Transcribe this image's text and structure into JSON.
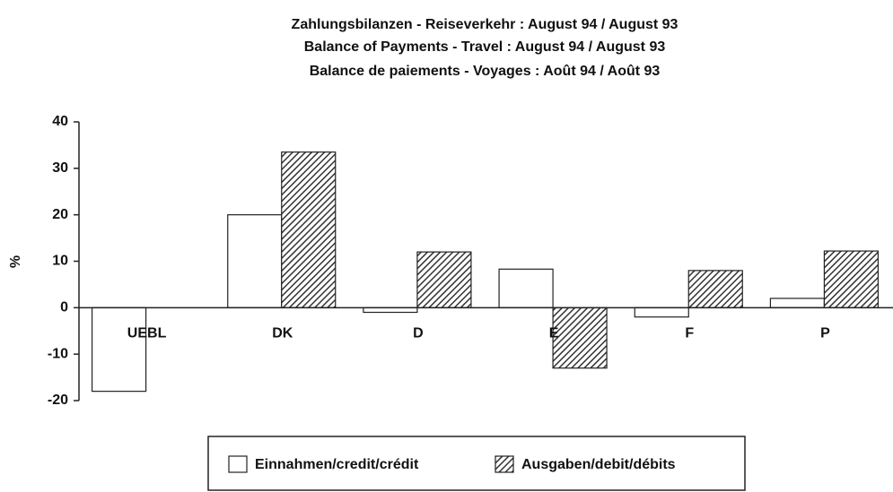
{
  "chart_data": {
    "type": "bar",
    "title": [
      "Zahlungsbilanzen - Reiseverkehr : August  94 / August 93",
      "Balance of Payments - Travel : August 94 / August 93",
      "Balance de paiements - Voyages : Août 94 / Août 93"
    ],
    "y_label": "%",
    "categories": [
      "UEBL",
      "DK",
      "D",
      "E",
      "F",
      "P"
    ],
    "series": [
      {
        "name": "Einnahmen/credit/crédit",
        "color": "#ffffff",
        "values": [
          -18,
          20,
          -1,
          8.3,
          -2,
          2
        ]
      },
      {
        "name": "Ausgaben/debit/débits",
        "color": "#333333",
        "values": [
          null,
          33.5,
          12,
          -13,
          8,
          12.2
        ]
      }
    ],
    "ylim": [
      -20,
      40
    ],
    "yticks": [
      -20,
      -10,
      0,
      10,
      20,
      30,
      40
    ],
    "grid": false,
    "legend": "bottom"
  }
}
